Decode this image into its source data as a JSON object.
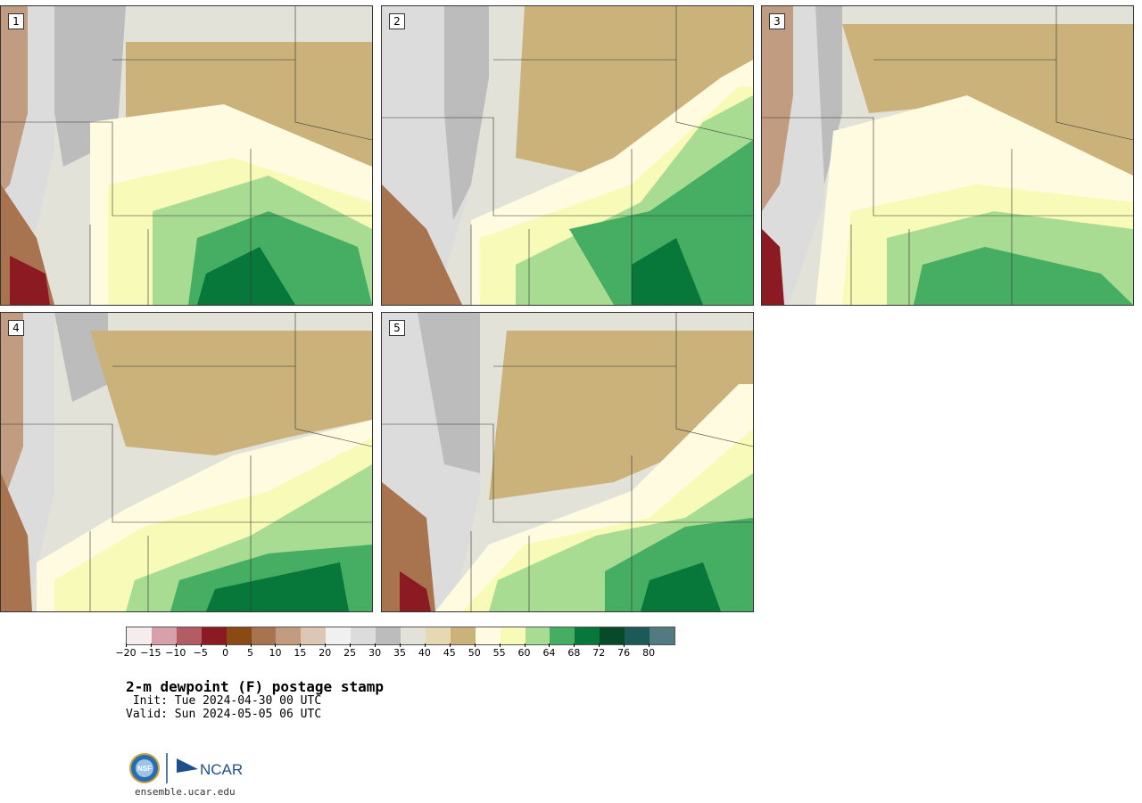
{
  "panels": [
    {
      "num": "1"
    },
    {
      "num": "2"
    },
    {
      "num": "3"
    },
    {
      "num": "4"
    },
    {
      "num": "5"
    }
  ],
  "colorbar": {
    "colors": [
      "#f5ecee",
      "#d8a0a8",
      "#b45c64",
      "#8b1a22",
      "#8a4a14",
      "#a87450",
      "#c29c80",
      "#dcc6b4",
      "#f0f0f0",
      "#dcdcdc",
      "#bcbcbc",
      "#e2e2d8",
      "#e6d8b0",
      "#cbb27a",
      "#fffbe0",
      "#f8fab8",
      "#a8dc92",
      "#46ae62",
      "#08783a",
      "#064a28",
      "#1c5a5a",
      "#527a80"
    ],
    "tick_labels": [
      "−20",
      "−15",
      "−10",
      "−5",
      "0",
      "5",
      "10",
      "15",
      "20",
      "25",
      "30",
      "35",
      "40",
      "45",
      "50",
      "55",
      "60",
      "64",
      "68",
      "72",
      "76",
      "80"
    ]
  },
  "title": "2-m dewpoint (F) postage stamp",
  "init_line": " Init: Tue 2024-04-30 00 UTC",
  "valid_line": "Valid: Sun 2024-05-05 06 UTC",
  "footer_url": "ensemble.ucar.edu",
  "logos": {
    "left": "NSF",
    "right": "NCAR"
  }
}
